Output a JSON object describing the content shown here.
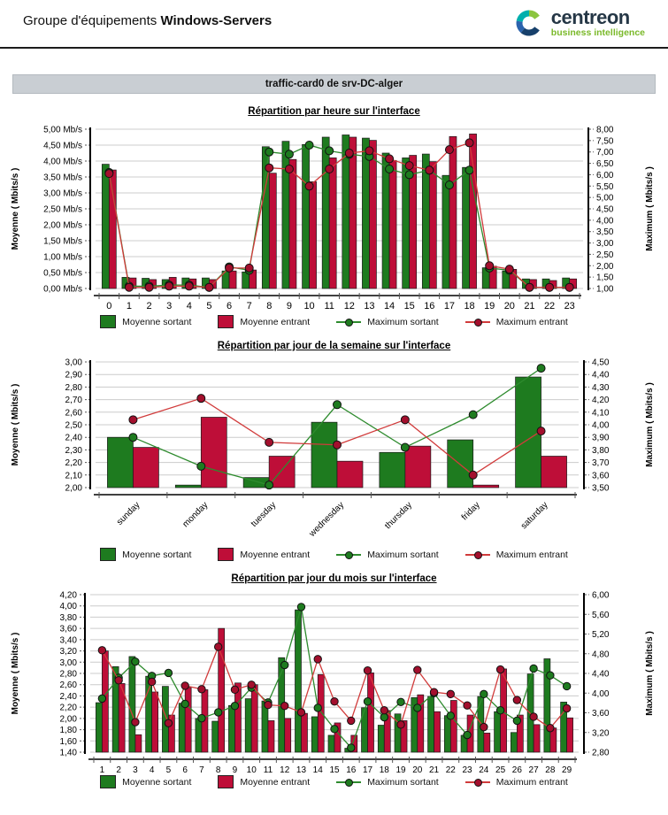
{
  "header": {
    "title_prefix": "Groupe d'équipements",
    "title_bold": "Windows-Servers",
    "logo_brand": "centreon",
    "logo_tagline": "business intelligence"
  },
  "report": {
    "section_title": "traffic-card0 de srv-DC-alger"
  },
  "colors": {
    "avg_out_bar": "#1e7b1f",
    "avg_in_bar": "#be0e38",
    "max_out_line": "#2e8b2e",
    "max_out_dot": "#1e7b1f",
    "max_in_line": "#d13b3b",
    "max_in_dot": "#a30f2d",
    "grid": "#cccccc",
    "axis": "#000000",
    "tick": "#555555"
  },
  "legend": {
    "items": [
      {
        "label": "Moyenne sortant",
        "swatch": "bar",
        "color_key": "avg_out_bar"
      },
      {
        "label": "Moyenne entrant",
        "swatch": "bar",
        "color_key": "avg_in_bar"
      },
      {
        "label": "Maximum sortant",
        "swatch": "line",
        "line_key": "max_out_line",
        "dot_key": "max_out_dot"
      },
      {
        "label": "Maximum entrant",
        "swatch": "line",
        "line_key": "max_in_line",
        "dot_key": "max_in_dot"
      }
    ]
  },
  "chart_data": [
    {
      "type": "bar",
      "title": "Répartition par heure sur l'interface",
      "categories": [
        "0",
        "1",
        "2",
        "3",
        "4",
        "5",
        "6",
        "7",
        "8",
        "9",
        "10",
        "11",
        "12",
        "13",
        "14",
        "15",
        "16",
        "17",
        "18",
        "19",
        "20",
        "21",
        "22",
        "23"
      ],
      "left_axis": {
        "label": "Moyenne ( Mbits/s )",
        "min": 0,
        "max": 5,
        "step": 0.5,
        "suffix": " Mb/s"
      },
      "right_axis": {
        "label": "Maximum ( Mbits/s )",
        "min": 1,
        "max": 8,
        "step": 0.5,
        "suffix": ""
      },
      "grid_step": 0.5,
      "series": [
        {
          "name": "Moyenne sortant",
          "type": "bar",
          "axis": "left",
          "values": [
            3.9,
            0.35,
            0.32,
            0.28,
            0.33,
            0.33,
            0.55,
            0.52,
            4.45,
            4.62,
            4.52,
            4.75,
            4.82,
            4.72,
            4.25,
            4.1,
            4.22,
            3.55,
            3.8,
            0.65,
            0.55,
            0.3,
            0.3,
            0.33
          ]
        },
        {
          "name": "Moyenne entrant",
          "type": "bar",
          "axis": "left",
          "values": [
            3.72,
            0.33,
            0.28,
            0.35,
            0.3,
            0.28,
            0.55,
            0.58,
            3.62,
            4.05,
            3.35,
            4.1,
            4.75,
            4.65,
            4.02,
            4.18,
            3.98,
            4.77,
            4.85,
            0.7,
            0.6,
            0.28,
            0.25,
            0.3
          ]
        },
        {
          "name": "Maximum sortant",
          "type": "line",
          "axis": "right",
          "values": [
            6.1,
            1.1,
            1.1,
            1.15,
            1.15,
            1.05,
            1.95,
            1.8,
            7.0,
            6.9,
            7.3,
            7.05,
            6.9,
            6.8,
            6.25,
            6.0,
            6.2,
            5.55,
            6.2,
            1.9,
            1.8,
            1.05,
            1.05,
            1.05
          ]
        },
        {
          "name": "Maximum entrant",
          "type": "line",
          "axis": "right",
          "values": [
            6.05,
            1.05,
            1.05,
            1.1,
            1.1,
            1.05,
            1.9,
            1.9,
            6.3,
            6.25,
            5.5,
            6.25,
            6.95,
            7.05,
            6.7,
            6.4,
            6.2,
            7.1,
            7.4,
            2.0,
            1.85,
            1.05,
            1.05,
            1.05
          ]
        }
      ]
    },
    {
      "type": "bar",
      "title": "Répartition par jour de la semaine sur l'interface",
      "categories": [
        "sunday",
        "monday",
        "tuesday",
        "wednesday",
        "thursday",
        "friday",
        "saturday"
      ],
      "left_axis": {
        "label": "Moyenne ( Mbits/s )",
        "min": 2.0,
        "max": 3.0,
        "step": 0.1,
        "suffix": ""
      },
      "right_axis": {
        "label": "Maximum ( Mbits/s )",
        "min": 3.5,
        "max": 4.5,
        "step": 0.1,
        "suffix": ""
      },
      "grid_step": 0.1,
      "series": [
        {
          "name": "Moyenne sortant",
          "type": "bar",
          "axis": "left",
          "values": [
            2.4,
            2.02,
            2.08,
            2.52,
            2.28,
            2.38,
            2.88
          ]
        },
        {
          "name": "Moyenne entrant",
          "type": "bar",
          "axis": "left",
          "values": [
            2.32,
            2.56,
            2.25,
            2.21,
            2.33,
            2.02,
            2.25
          ]
        },
        {
          "name": "Maximum sortant",
          "type": "line",
          "axis": "right",
          "values": [
            3.9,
            3.67,
            3.52,
            4.16,
            3.82,
            4.08,
            4.45
          ]
        },
        {
          "name": "Maximum entrant",
          "type": "line",
          "axis": "right",
          "values": [
            4.04,
            4.21,
            3.86,
            3.84,
            4.04,
            3.6,
            3.95
          ]
        }
      ]
    },
    {
      "type": "bar",
      "title": "Répartition par jour du mois sur l'interface",
      "categories": [
        "1",
        "2",
        "3",
        "4",
        "5",
        "6",
        "7",
        "8",
        "9",
        "10",
        "11",
        "12",
        "13",
        "14",
        "15",
        "16",
        "17",
        "18",
        "19",
        "20",
        "21",
        "22",
        "23",
        "24",
        "25",
        "26",
        "27",
        "28",
        "29"
      ],
      "left_axis": {
        "label": "Moyenne ( Mbits/s )",
        "min": 1.4,
        "max": 4.2,
        "step": 0.2,
        "suffix": ""
      },
      "right_axis": {
        "label": "Maximum ( Mbits/s )",
        "min": 2.8,
        "max": 6.0,
        "step": 0.4,
        "suffix": ""
      },
      "grid_step": 0.2,
      "series": [
        {
          "name": "Moyenne sortant",
          "type": "bar",
          "axis": "left",
          "values": [
            2.28,
            2.92,
            3.1,
            2.75,
            2.57,
            2.27,
            2.0,
            1.95,
            2.23,
            2.35,
            2.31,
            3.08,
            3.93,
            2.03,
            1.7,
            1.47,
            2.19,
            1.88,
            2.08,
            2.37,
            2.39,
            2.05,
            1.7,
            2.39,
            2.12,
            1.75,
            2.79,
            3.06,
            2.29
          ]
        },
        {
          "name": "Moyenne entrant",
          "type": "bar",
          "axis": "left",
          "values": [
            3.2,
            2.62,
            1.71,
            2.47,
            2.06,
            2.55,
            2.51,
            3.6,
            2.63,
            2.6,
            1.96,
            2.0,
            2.09,
            2.78,
            1.92,
            1.7,
            2.81,
            2.14,
            1.96,
            2.42,
            2.12,
            2.32,
            2.06,
            1.74,
            2.88,
            2.06,
            1.89,
            1.83,
            2.01
          ]
        },
        {
          "name": "Maximum sortant",
          "type": "line",
          "axis": "right",
          "values": [
            3.89,
            4.31,
            4.64,
            4.35,
            4.41,
            3.78,
            3.49,
            3.61,
            3.74,
            4.11,
            3.81,
            4.57,
            5.75,
            3.7,
            3.27,
            2.89,
            3.83,
            3.51,
            3.82,
            3.7,
            4.0,
            3.54,
            3.15,
            3.98,
            3.65,
            3.44,
            4.5,
            4.36,
            4.14
          ]
        },
        {
          "name": "Maximum entrant",
          "type": "line",
          "axis": "right",
          "values": [
            4.87,
            4.26,
            3.41,
            4.23,
            3.39,
            4.15,
            4.08,
            4.94,
            4.07,
            4.17,
            3.76,
            3.74,
            3.61,
            4.69,
            3.83,
            3.44,
            4.46,
            3.65,
            3.36,
            4.47,
            4.02,
            3.98,
            3.75,
            3.31,
            4.48,
            3.86,
            3.52,
            3.29,
            3.69
          ]
        }
      ]
    }
  ]
}
